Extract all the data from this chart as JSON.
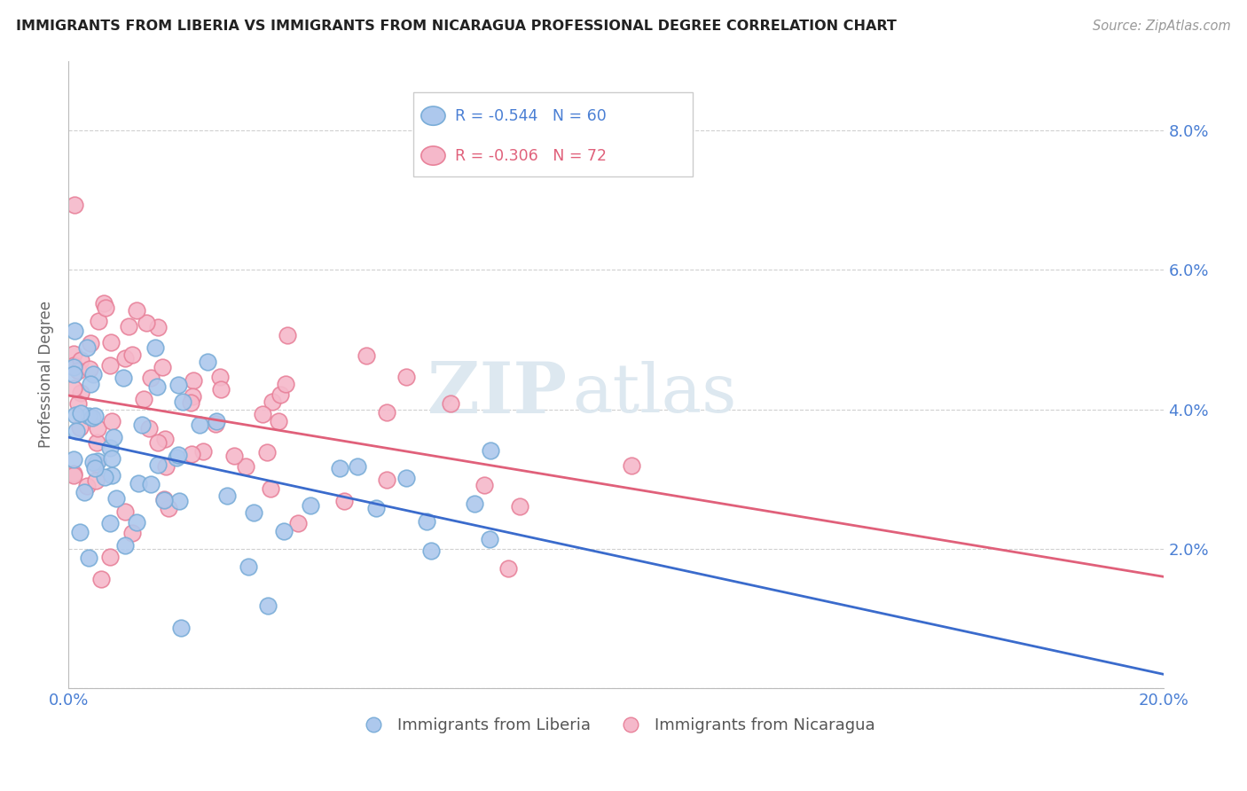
{
  "title": "IMMIGRANTS FROM LIBERIA VS IMMIGRANTS FROM NICARAGUA PROFESSIONAL DEGREE CORRELATION CHART",
  "source": "Source: ZipAtlas.com",
  "ylabel": "Professional Degree",
  "xlim": [
    0.0,
    0.2
  ],
  "ylim": [
    0.0,
    0.09
  ],
  "liberia_color": "#adc8ed",
  "nicaragua_color": "#f5b8ca",
  "liberia_edge": "#7aadd8",
  "nicaragua_edge": "#e8829a",
  "trend_liberia_color": "#3a6bcc",
  "trend_nicaragua_color": "#e0607a",
  "R_liberia": -0.544,
  "N_liberia": 60,
  "R_nicaragua": -0.306,
  "N_nicaragua": 72,
  "legend_label_liberia": "Immigrants from Liberia",
  "legend_label_nicaragua": "Immigrants from Nicaragua",
  "background_color": "#ffffff",
  "grid_color": "#d0d0d0",
  "axis_label_color": "#4a7fd4",
  "title_color": "#222222",
  "watermark_zip": "ZIP",
  "watermark_atlas": "atlas",
  "trend_liberia_start_y": 0.036,
  "trend_liberia_end_y": 0.002,
  "trend_nicaragua_start_y": 0.042,
  "trend_nicaragua_end_y": 0.016
}
